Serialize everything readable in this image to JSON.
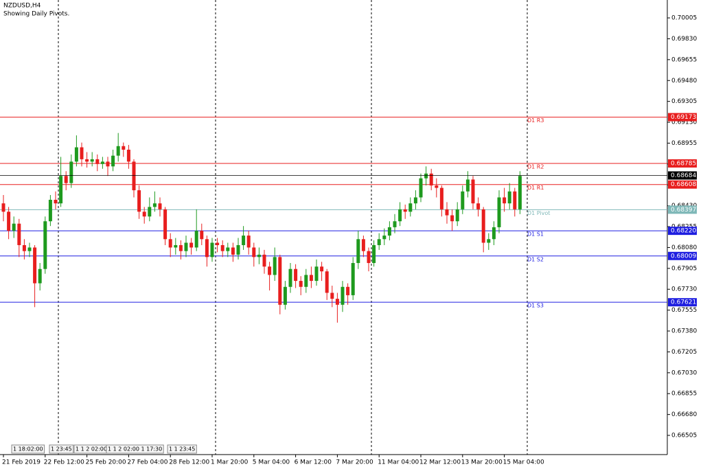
{
  "chart_data": {
    "type": "candlestick",
    "title": "NZDUSD,H4",
    "subtitle": "Showing Daily Pivots.",
    "categories": [
      "21 Feb 2019",
      null,
      null,
      null,
      null,
      null,
      null,
      null,
      "22 Feb 12:00",
      null,
      null,
      null,
      null,
      null,
      null,
      null,
      "25 Feb 20:00",
      null,
      null,
      null,
      null,
      null,
      null,
      null,
      "27 Feb 04:00",
      null,
      null,
      null,
      null,
      null,
      null,
      null,
      "28 Feb 12:00",
      null,
      null,
      null,
      null,
      null,
      null,
      null,
      "1 Mar 20:00",
      null,
      null,
      null,
      null,
      null,
      null,
      null,
      "5 Mar 04:00",
      null,
      null,
      null,
      null,
      null,
      null,
      null,
      "6 Mar 12:00",
      null,
      null,
      null,
      null,
      null,
      null,
      null,
      "7 Mar 20:00",
      null,
      null,
      null,
      null,
      null,
      null,
      null,
      "11 Mar 04:00",
      null,
      null,
      null,
      null,
      null,
      null,
      null,
      "12 Mar 12:00",
      null,
      null,
      null,
      null,
      null,
      null,
      null,
      "13 Mar 20:00",
      null,
      null,
      null,
      null,
      null,
      null,
      null,
      "15 Mar 04:00",
      null,
      null,
      null
    ],
    "open": [
      0.6845,
      0.6838,
      0.6822,
      0.6828,
      0.681,
      0.6805,
      0.6808,
      0.6778,
      0.679,
      0.683,
      0.6848,
      0.6845,
      0.6868,
      0.6862,
      0.688,
      0.6892,
      0.6882,
      0.688,
      0.6882,
      0.6878,
      0.688,
      0.6876,
      0.6885,
      0.6893,
      0.689,
      0.688,
      0.6856,
      0.6838,
      0.6834,
      0.6842,
      0.6845,
      0.684,
      0.6815,
      0.6808,
      0.681,
      0.6805,
      0.6812,
      0.6808,
      0.6822,
      0.6815,
      0.68,
      0.6812,
      0.681,
      0.6805,
      0.6808,
      0.6802,
      0.681,
      0.6818,
      0.6808,
      0.68,
      0.6802,
      0.6792,
      0.6785,
      0.68,
      0.676,
      0.6775,
      0.679,
      0.678,
      0.6775,
      0.6785,
      0.678,
      0.6792,
      0.6788,
      0.677,
      0.6765,
      0.676,
      0.6775,
      0.6768,
      0.6795,
      0.6815,
      0.6805,
      0.6795,
      0.681,
      0.6815,
      0.6818,
      0.6825,
      0.683,
      0.684,
      0.6838,
      0.6845,
      0.685,
      0.6866,
      0.687,
      0.686,
      0.6858,
      0.684,
      0.6835,
      0.683,
      0.684,
      0.6855,
      0.6865,
      0.6845,
      0.684,
      0.6812,
      0.6815,
      0.6825,
      0.685,
      0.6845,
      0.6855,
      0.684
    ],
    "high": [
      0.6852,
      0.6842,
      0.6834,
      0.6832,
      0.6815,
      0.6812,
      0.681,
      0.6795,
      0.6834,
      0.6852,
      0.6855,
      0.6884,
      0.6872,
      0.6886,
      0.6902,
      0.6896,
      0.6888,
      0.6888,
      0.6886,
      0.6884,
      0.6884,
      0.689,
      0.6904,
      0.6896,
      0.6894,
      0.6882,
      0.686,
      0.6842,
      0.685,
      0.6855,
      0.685,
      0.6842,
      0.682,
      0.6816,
      0.6814,
      0.6818,
      0.6816,
      0.684,
      0.6828,
      0.6818,
      0.6816,
      0.6816,
      0.6814,
      0.6812,
      0.6812,
      0.6816,
      0.6826,
      0.6822,
      0.6812,
      0.6808,
      0.6806,
      0.6796,
      0.6808,
      0.6802,
      0.678,
      0.6795,
      0.6794,
      0.6784,
      0.679,
      0.6792,
      0.6798,
      0.6796,
      0.679,
      0.6776,
      0.677,
      0.678,
      0.6778,
      0.68,
      0.6822,
      0.6818,
      0.6808,
      0.6814,
      0.682,
      0.6824,
      0.683,
      0.6836,
      0.6846,
      0.6844,
      0.685,
      0.6856,
      0.687,
      0.6876,
      0.6874,
      0.6866,
      0.686,
      0.6846,
      0.684,
      0.6846,
      0.686,
      0.6872,
      0.6868,
      0.685,
      0.6842,
      0.682,
      0.683,
      0.6856,
      0.6858,
      0.6862,
      0.6858,
      0.6872
    ],
    "low": [
      0.683,
      0.6815,
      0.6816,
      0.68,
      0.6798,
      0.68,
      0.6758,
      0.6772,
      0.6786,
      0.6826,
      0.684,
      0.6842,
      0.6856,
      0.6858,
      0.6876,
      0.6876,
      0.6875,
      0.6876,
      0.6872,
      0.6874,
      0.6868,
      0.6872,
      0.688,
      0.6884,
      0.6874,
      0.685,
      0.6832,
      0.6828,
      0.683,
      0.6838,
      0.6834,
      0.681,
      0.68,
      0.6802,
      0.6798,
      0.68,
      0.6802,
      0.6805,
      0.681,
      0.6792,
      0.6796,
      0.6804,
      0.68,
      0.68,
      0.6796,
      0.6798,
      0.6806,
      0.6802,
      0.6792,
      0.6794,
      0.6786,
      0.6772,
      0.678,
      0.6752,
      0.6756,
      0.677,
      0.6774,
      0.6768,
      0.677,
      0.6774,
      0.6776,
      0.678,
      0.6764,
      0.6758,
      0.6745,
      0.6754,
      0.676,
      0.6764,
      0.679,
      0.68,
      0.6788,
      0.6792,
      0.6806,
      0.681,
      0.6814,
      0.682,
      0.6826,
      0.6832,
      0.6834,
      0.684,
      0.6846,
      0.686,
      0.6856,
      0.685,
      0.6834,
      0.6828,
      0.6822,
      0.6826,
      0.6836,
      0.685,
      0.684,
      0.6834,
      0.6804,
      0.6806,
      0.681,
      0.682,
      0.6838,
      0.684,
      0.6834,
      0.6836
    ],
    "close": [
      0.6838,
      0.6822,
      0.6828,
      0.681,
      0.6805,
      0.6808,
      0.6778,
      0.679,
      0.683,
      0.6848,
      0.6845,
      0.6868,
      0.6862,
      0.688,
      0.6892,
      0.6882,
      0.688,
      0.6882,
      0.6878,
      0.688,
      0.6876,
      0.6885,
      0.6893,
      0.689,
      0.688,
      0.6856,
      0.6838,
      0.6834,
      0.6842,
      0.6845,
      0.684,
      0.6815,
      0.6808,
      0.681,
      0.6805,
      0.6812,
      0.6808,
      0.6822,
      0.6815,
      0.68,
      0.6812,
      0.681,
      0.6805,
      0.6808,
      0.6802,
      0.681,
      0.6818,
      0.6808,
      0.68,
      0.6802,
      0.6792,
      0.6785,
      0.68,
      0.676,
      0.6775,
      0.679,
      0.678,
      0.6775,
      0.6785,
      0.678,
      0.6792,
      0.6788,
      0.677,
      0.6765,
      0.676,
      0.6775,
      0.6768,
      0.6795,
      0.6815,
      0.6805,
      0.6795,
      0.681,
      0.6815,
      0.6818,
      0.6825,
      0.683,
      0.684,
      0.6838,
      0.6845,
      0.685,
      0.6866,
      0.687,
      0.686,
      0.6858,
      0.684,
      0.6835,
      0.683,
      0.684,
      0.6855,
      0.6865,
      0.6845,
      0.684,
      0.6812,
      0.6815,
      0.6825,
      0.685,
      0.6845,
      0.6855,
      0.684,
      0.6868
    ],
    "up_color": "#1e9a1e",
    "down_color": "#e81e1e",
    "ylim": [
      0.66344,
      0.70155
    ],
    "yticks": [
      0.70005,
      {
        "value": 0.6983,
        "label": "0.69830"
      },
      0.69655,
      {
        "value": 0.6948,
        "label": "0.69480"
      },
      0.69305,
      {
        "value": 0.6913,
        "label": "0.69130"
      },
      0.68955,
      {
        "value": 0.6878,
        "label": "0.68780"
      },
      0.68605,
      {
        "value": 0.6843,
        "label": "0.68430"
      },
      0.68255,
      {
        "value": 0.6808,
        "label": "0.68080"
      },
      0.67905,
      {
        "value": 0.6773,
        "label": "0.67730"
      },
      0.67555,
      {
        "value": 0.6738,
        "label": "0.67380"
      },
      0.67205,
      {
        "value": 0.6703,
        "label": "0.67030"
      },
      0.66855,
      {
        "value": 0.6668,
        "label": "0.66680"
      },
      0.66505
    ],
    "levels": [
      {
        "name": "D1 R3",
        "value": 0.69173,
        "label": "0.69173",
        "color": "#e81e1e"
      },
      {
        "name": "D1 R2",
        "value": 0.68785,
        "label": "0.68785",
        "color": "#e81e1e"
      },
      {
        "name": "D1 R1",
        "value": 0.68608,
        "label": "0.68608",
        "color": "#e81e1e"
      },
      {
        "name": "D1 Pivot",
        "value": 0.68397,
        "label": "0.68397",
        "color": "#7fb8b8"
      },
      {
        "name": "D1 S1",
        "value": 0.6822,
        "label": "0.68220",
        "color": "#1e1ee0"
      },
      {
        "name": "D1 S2",
        "value": 0.68009,
        "label": "0.68009",
        "color": "#1e1ee0"
      },
      {
        "name": "D1 S3",
        "value": 0.67621,
        "label": "0.67621",
        "color": "#1e1ee0"
      }
    ],
    "current_price": {
      "value": 0.68684,
      "label": "0.68684",
      "color": "#000000"
    },
    "bottom_tags": [
      "1 18:02:00",
      "1 23:45",
      "1 1 2 02:00",
      "1 1 2 02:00 1 17:30",
      "1 1 23:45"
    ]
  }
}
